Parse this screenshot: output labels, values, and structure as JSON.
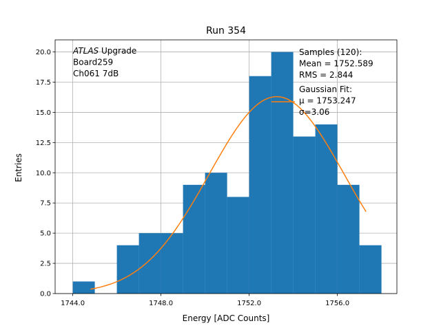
{
  "chart_data": {
    "type": "bar",
    "title": "Run 354",
    "xlabel": "Energy [ADC Counts]",
    "ylabel": "Entries",
    "xlim": [
      1743.2,
      1758.7
    ],
    "ylim": [
      0,
      21
    ],
    "grid": true,
    "x_ticks": [
      1744.0,
      1748.0,
      1752.0,
      1756.0
    ],
    "x_tick_labels": [
      "1744.0",
      "1748.0",
      "1752.0",
      "1756.0"
    ],
    "y_ticks": [
      0,
      2.5,
      5.0,
      7.5,
      10.0,
      12.5,
      15.0,
      17.5,
      20.0
    ],
    "y_tick_labels": [
      "0.0",
      "2.5",
      "5.0",
      "7.5",
      "10.0",
      "12.5",
      "15.0",
      "17.5",
      "20.0"
    ],
    "bins": [
      {
        "x0": 1744.0,
        "x1": 1745.0,
        "value": 1
      },
      {
        "x0": 1745.0,
        "x1": 1746.0,
        "value": 0
      },
      {
        "x0": 1746.0,
        "x1": 1747.0,
        "value": 4
      },
      {
        "x0": 1747.0,
        "x1": 1748.0,
        "value": 5
      },
      {
        "x0": 1748.0,
        "x1": 1749.0,
        "value": 5
      },
      {
        "x0": 1749.0,
        "x1": 1750.0,
        "value": 9
      },
      {
        "x0": 1750.0,
        "x1": 1751.0,
        "value": 10
      },
      {
        "x0": 1751.0,
        "x1": 1752.0,
        "value": 8
      },
      {
        "x0": 1752.0,
        "x1": 1753.0,
        "value": 18
      },
      {
        "x0": 1753.0,
        "x1": 1754.0,
        "value": 20
      },
      {
        "x0": 1754.0,
        "x1": 1755.0,
        "value": 13
      },
      {
        "x0": 1755.0,
        "x1": 1756.0,
        "value": 14
      },
      {
        "x0": 1756.0,
        "x1": 1757.0,
        "value": 9
      },
      {
        "x0": 1757.0,
        "x1": 1758.0,
        "value": 4
      }
    ],
    "bar_color": "#1f77b4",
    "fit": {
      "type": "gaussian",
      "mu": 1753.247,
      "sigma": 3.06,
      "amplitude": 16.3,
      "x_range": [
        1744.8,
        1757.3
      ],
      "color": "#ff7f0e"
    },
    "annotation": {
      "lines": [
        {
          "italic": "ATLAS",
          "rest": " Upgrade"
        },
        {
          "italic": "",
          "rest": " Board259"
        },
        {
          "italic": "",
          "rest": " Ch061 7dB"
        }
      ]
    },
    "legend": {
      "placement": "top-right",
      "lines": [
        "Samples (120):",
        " Mean = 1752.589",
        " RMS = 2.844",
        "Gaussian Fit:",
        " μ = 1753.247",
        " σ=3.06"
      ]
    }
  }
}
